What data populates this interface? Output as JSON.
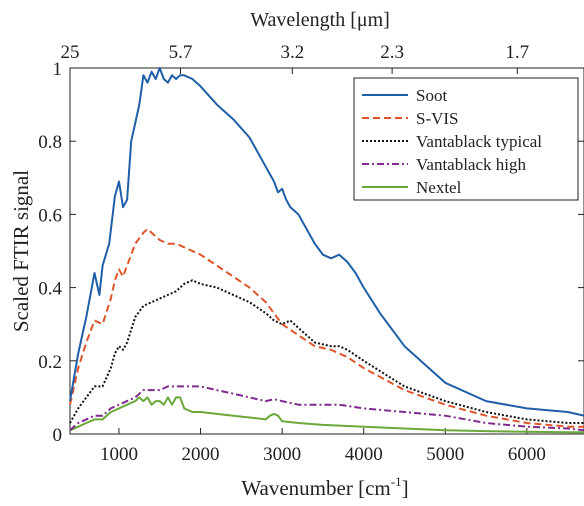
{
  "chart_data": {
    "type": "line",
    "title": "",
    "xlabel": "Wavenumber [cm",
    "xlabel_superscript": "-1",
    "xlabel_suffix": "]",
    "ylabel": "Scaled FTIR signal",
    "top_axis_label": "Wavelength [μm]",
    "xlim": [
      400,
      6700
    ],
    "ylim": [
      0,
      1
    ],
    "grid": false,
    "legend_position": "top-right",
    "x_ticks": [
      1000,
      2000,
      3000,
      4000,
      5000,
      6000
    ],
    "x_tick_labels": [
      "1000",
      "2000",
      "3000",
      "4000",
      "5000",
      "6000"
    ],
    "y_ticks": [
      0,
      0.2,
      0.4,
      0.6,
      0.8,
      1
    ],
    "y_tick_labels": [
      "0",
      "0.2",
      "0.4",
      "0.6",
      "0.8",
      "1"
    ],
    "top_ticks": [
      400,
      1754,
      3125,
      4348,
      5882
    ],
    "top_tick_labels": [
      "25",
      "5.7",
      "3.2",
      "2.3",
      "1.7"
    ],
    "series": [
      {
        "name": "Soot",
        "color": "#1f5fa8",
        "dash": "solid",
        "x": [
          400,
          500,
          600,
          700,
          760,
          800,
          880,
          950,
          1000,
          1050,
          1100,
          1150,
          1200,
          1250,
          1300,
          1350,
          1400,
          1450,
          1500,
          1550,
          1600,
          1650,
          1700,
          1750,
          1800,
          1900,
          2000,
          2200,
          2400,
          2600,
          2800,
          2900,
          2950,
          3000,
          3050,
          3100,
          3200,
          3400,
          3500,
          3600,
          3700,
          3800,
          3900,
          4000,
          4200,
          4500,
          5000,
          5500,
          6000,
          6500,
          6700
        ],
        "y": [
          0.09,
          0.22,
          0.32,
          0.44,
          0.38,
          0.46,
          0.52,
          0.65,
          0.69,
          0.62,
          0.64,
          0.8,
          0.85,
          0.9,
          0.98,
          0.96,
          0.99,
          0.97,
          1.0,
          0.97,
          0.96,
          0.98,
          0.97,
          0.98,
          0.98,
          0.97,
          0.95,
          0.9,
          0.86,
          0.81,
          0.73,
          0.69,
          0.66,
          0.67,
          0.64,
          0.62,
          0.6,
          0.52,
          0.49,
          0.48,
          0.49,
          0.47,
          0.44,
          0.4,
          0.33,
          0.24,
          0.14,
          0.09,
          0.07,
          0.06,
          0.05
        ]
      },
      {
        "name": "S-VIS",
        "color": "#e0542a",
        "dash": "dashed",
        "x": [
          400,
          500,
          600,
          700,
          800,
          900,
          950,
          1000,
          1050,
          1100,
          1200,
          1300,
          1350,
          1400,
          1500,
          1600,
          1700,
          1800,
          2000,
          2200,
          2400,
          2600,
          2800,
          3000,
          3200,
          3400,
          3600,
          3800,
          4000,
          4500,
          5000,
          5500,
          6000,
          6500,
          6700
        ],
        "y": [
          0.08,
          0.18,
          0.25,
          0.31,
          0.3,
          0.37,
          0.42,
          0.45,
          0.43,
          0.46,
          0.52,
          0.55,
          0.56,
          0.55,
          0.53,
          0.52,
          0.52,
          0.51,
          0.49,
          0.46,
          0.43,
          0.4,
          0.36,
          0.3,
          0.27,
          0.24,
          0.23,
          0.21,
          0.18,
          0.12,
          0.08,
          0.05,
          0.03,
          0.02,
          0.02
        ]
      },
      {
        "name": "Vantablack typical",
        "color": "#111111",
        "dash": "dotted",
        "x": [
          400,
          500,
          600,
          700,
          800,
          900,
          950,
          1000,
          1050,
          1100,
          1200,
          1300,
          1400,
          1500,
          1600,
          1700,
          1800,
          1900,
          2000,
          2200,
          2400,
          2600,
          2800,
          2900,
          3000,
          3100,
          3200,
          3400,
          3600,
          3700,
          3800,
          4000,
          4500,
          5000,
          5500,
          6000,
          6500,
          6700
        ],
        "y": [
          0.03,
          0.07,
          0.1,
          0.13,
          0.13,
          0.18,
          0.22,
          0.24,
          0.23,
          0.25,
          0.32,
          0.35,
          0.36,
          0.37,
          0.38,
          0.39,
          0.41,
          0.42,
          0.41,
          0.4,
          0.38,
          0.36,
          0.33,
          0.31,
          0.3,
          0.31,
          0.29,
          0.25,
          0.24,
          0.24,
          0.23,
          0.2,
          0.13,
          0.09,
          0.06,
          0.04,
          0.03,
          0.03
        ]
      },
      {
        "name": "Vantablack high",
        "color": "#7f2a8f",
        "dash": "dashdot",
        "x": [
          400,
          500,
          600,
          700,
          800,
          900,
          1000,
          1100,
          1200,
          1300,
          1400,
          1500,
          1600,
          1700,
          1800,
          1900,
          2000,
          2200,
          2400,
          2600,
          2800,
          2900,
          3000,
          3200,
          3500,
          3700,
          4000,
          4500,
          5000,
          5500,
          6000,
          6500,
          6700
        ],
        "y": [
          0.01,
          0.03,
          0.04,
          0.05,
          0.05,
          0.07,
          0.08,
          0.09,
          0.1,
          0.12,
          0.12,
          0.12,
          0.13,
          0.13,
          0.13,
          0.13,
          0.13,
          0.12,
          0.11,
          0.1,
          0.09,
          0.095,
          0.09,
          0.08,
          0.08,
          0.08,
          0.07,
          0.06,
          0.05,
          0.03,
          0.02,
          0.015,
          0.01
        ]
      },
      {
        "name": "Nextel",
        "color": "#6aa83a",
        "dash": "solid",
        "x": [
          400,
          500,
          600,
          700,
          800,
          900,
          1000,
          1100,
          1200,
          1250,
          1300,
          1350,
          1400,
          1450,
          1500,
          1550,
          1600,
          1650,
          1700,
          1750,
          1800,
          1900,
          2000,
          2200,
          2400,
          2600,
          2800,
          2850,
          2900,
          2950,
          3000,
          3200,
          3500,
          4000,
          4500,
          5000,
          5500,
          6000,
          6500,
          6700
        ],
        "y": [
          0.01,
          0.02,
          0.03,
          0.04,
          0.04,
          0.06,
          0.07,
          0.08,
          0.09,
          0.1,
          0.09,
          0.1,
          0.08,
          0.09,
          0.09,
          0.08,
          0.1,
          0.08,
          0.1,
          0.1,
          0.07,
          0.06,
          0.06,
          0.055,
          0.05,
          0.045,
          0.04,
          0.05,
          0.055,
          0.05,
          0.035,
          0.03,
          0.025,
          0.02,
          0.015,
          0.01,
          0.008,
          0.006,
          0.005,
          0.005
        ]
      }
    ]
  }
}
